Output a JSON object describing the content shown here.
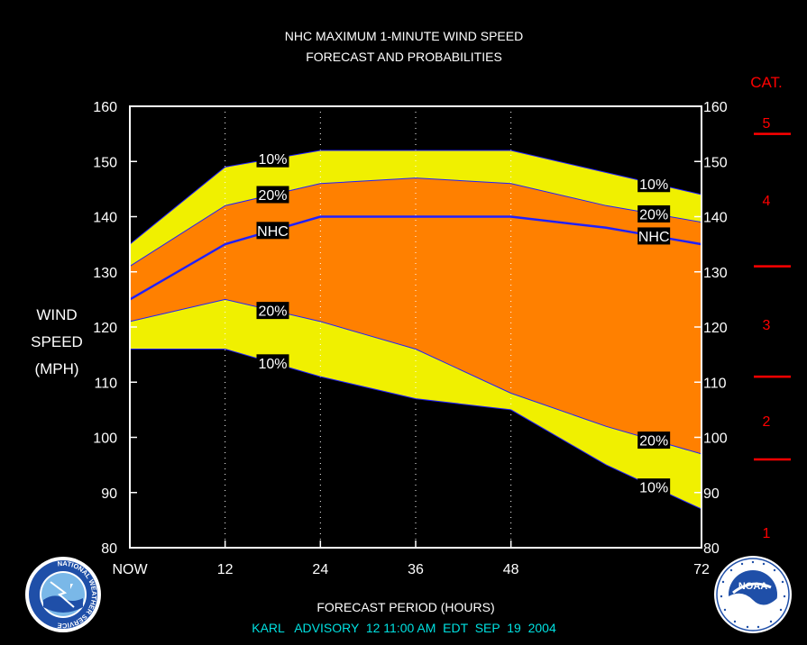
{
  "title_line1": "NHC MAXIMUM 1-MINUTE WIND SPEED",
  "title_line2": "FORECAST AND PROBABILITIES",
  "ylabel_lines": [
    "WIND",
    "SPEED",
    "(MPH)"
  ],
  "xlabel": "FORECAST PERIOD (HOURS)",
  "footer": "KARL   ADVISORY  12 11:00 AM  EDT  SEP  19  2004",
  "category_axis_label": "CAT.",
  "logos": {
    "nws": "NATIONAL WEATHER SERVICE",
    "noaa": "NOAA"
  },
  "colors": {
    "background": "#000000",
    "band_10": "#f0f000",
    "band_20": "#ff8000",
    "nhc_line": "#2020ff",
    "text": "#ffffff",
    "footer_text": "#00e0e0",
    "category": "#ff0000"
  },
  "chart_data": {
    "type": "area",
    "x_axis": {
      "range": [
        0,
        72
      ],
      "ticks": [
        {
          "value": 0,
          "label": "NOW"
        },
        {
          "value": 12,
          "label": "12"
        },
        {
          "value": 24,
          "label": "24"
        },
        {
          "value": 36,
          "label": "36"
        },
        {
          "value": 48,
          "label": "48"
        },
        {
          "value": 72,
          "label": "72"
        }
      ],
      "vertical_gridlines": [
        12,
        24,
        36,
        48
      ]
    },
    "y_axis": {
      "range": [
        80,
        160
      ],
      "ticks": [
        80,
        90,
        100,
        110,
        120,
        130,
        140,
        150,
        160
      ]
    },
    "x": [
      0,
      12,
      24,
      36,
      48,
      60,
      72
    ],
    "series": [
      {
        "name": "10%",
        "role": "upper",
        "values": [
          135,
          149,
          152,
          152,
          152,
          148,
          144
        ]
      },
      {
        "name": "20%",
        "role": "upper",
        "values": [
          131,
          142,
          146,
          147,
          146,
          142,
          139
        ]
      },
      {
        "name": "NHC",
        "role": "forecast",
        "values": [
          125,
          135,
          140,
          140,
          140,
          138,
          135
        ]
      },
      {
        "name": "20%",
        "role": "lower",
        "values": [
          121,
          125,
          121,
          116,
          108,
          102,
          97
        ]
      },
      {
        "name": "10%",
        "role": "lower",
        "values": [
          116,
          116,
          111,
          107,
          105,
          95,
          87
        ]
      }
    ],
    "curve_labels": [
      {
        "text": "10%",
        "series": 0,
        "x": 18
      },
      {
        "text": "20%",
        "series": 1,
        "x": 18
      },
      {
        "text": "NHC",
        "series": 2,
        "x": 18
      },
      {
        "text": "20%",
        "series": 3,
        "x": 18
      },
      {
        "text": "10%",
        "series": 4,
        "x": 18
      },
      {
        "text": "10%",
        "series": 0,
        "x": 66
      },
      {
        "text": "20%",
        "series": 1,
        "x": 66
      },
      {
        "text": "NHC",
        "series": 2,
        "x": 66
      },
      {
        "text": "20%",
        "series": 3,
        "x": 66
      },
      {
        "text": "10%",
        "series": 4,
        "x": 66
      }
    ],
    "categories": [
      {
        "label": "1",
        "min": 74,
        "max": 95
      },
      {
        "label": "2",
        "min": 96,
        "max": 110
      },
      {
        "label": "3",
        "min": 111,
        "max": 130
      },
      {
        "label": "4",
        "min": 131,
        "max": 155
      },
      {
        "label": "5",
        "min": 155,
        "max": 160
      }
    ],
    "category_boundaries": [
      96,
      111,
      131,
      155
    ]
  }
}
